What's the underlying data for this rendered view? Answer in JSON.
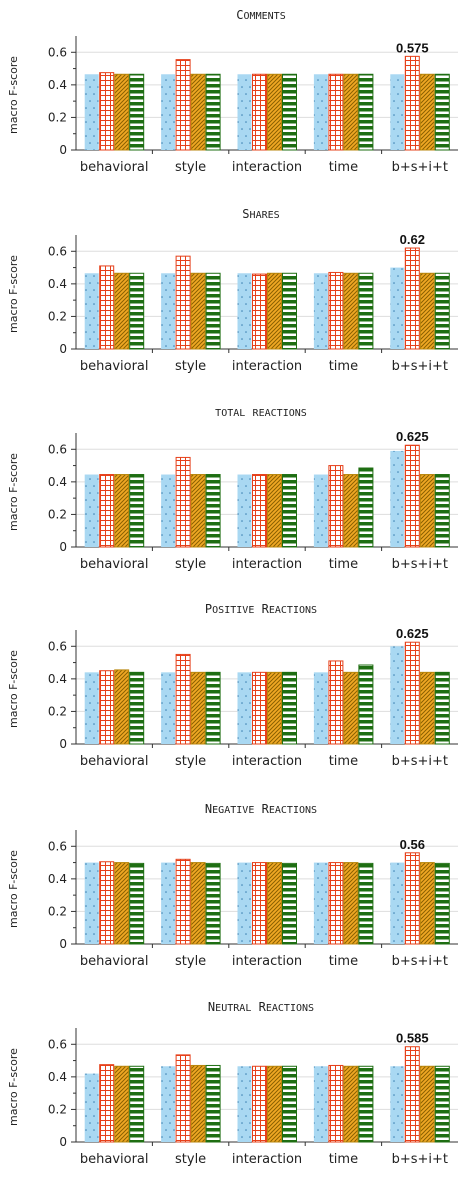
{
  "chart_data": [
    {
      "type": "bar",
      "title": "Comments",
      "categories": [
        "behavioral",
        "style",
        "interaction",
        "time",
        "b+s+i+t"
      ],
      "series": [
        {
          "values": [
            0.465,
            0.465,
            0.465,
            0.465,
            0.465
          ]
        },
        {
          "values": [
            0.475,
            0.555,
            0.465,
            0.465,
            0.575
          ]
        },
        {
          "values": [
            0.465,
            0.465,
            0.465,
            0.465,
            0.465
          ]
        },
        {
          "values": [
            0.465,
            0.465,
            0.465,
            0.465,
            0.465
          ]
        }
      ],
      "ylabel": "macro F-score",
      "yticks": [
        "0",
        "0.2",
        "0.4",
        "0.6"
      ],
      "ylim": [
        0,
        0.7
      ],
      "grid": "horizontal",
      "annotation": "0.575"
    },
    {
      "type": "bar",
      "title": "Shares",
      "categories": [
        "behavioral",
        "style",
        "interaction",
        "time",
        "b+s+i+t"
      ],
      "series": [
        {
          "values": [
            0.465,
            0.465,
            0.465,
            0.465,
            0.5
          ]
        },
        {
          "values": [
            0.51,
            0.57,
            0.46,
            0.47,
            0.62
          ]
        },
        {
          "values": [
            0.465,
            0.465,
            0.465,
            0.465,
            0.465
          ]
        },
        {
          "values": [
            0.465,
            0.465,
            0.465,
            0.465,
            0.465
          ]
        }
      ],
      "ylabel": "macro F-score",
      "yticks": [
        "0",
        "0.2",
        "0.4",
        "0.6"
      ],
      "ylim": [
        0,
        0.7
      ],
      "grid": "horizontal",
      "annotation": "0.62"
    },
    {
      "type": "bar",
      "title": "total reactions",
      "categories": [
        "behavioral",
        "style",
        "interaction",
        "time",
        "b+s+i+t"
      ],
      "series": [
        {
          "values": [
            0.445,
            0.445,
            0.445,
            0.445,
            0.59
          ]
        },
        {
          "values": [
            0.445,
            0.55,
            0.445,
            0.5,
            0.625
          ]
        },
        {
          "values": [
            0.445,
            0.445,
            0.445,
            0.445,
            0.445
          ]
        },
        {
          "values": [
            0.445,
            0.445,
            0.445,
            0.485,
            0.445
          ]
        }
      ],
      "ylabel": "macro F-score",
      "yticks": [
        "0",
        "0.2",
        "0.4",
        "0.6"
      ],
      "ylim": [
        0,
        0.7
      ],
      "grid": "horizontal",
      "annotation": "0.625"
    },
    {
      "type": "bar",
      "title": "Positive Reactions",
      "categories": [
        "behavioral",
        "style",
        "interaction",
        "time",
        "b+s+i+t"
      ],
      "series": [
        {
          "values": [
            0.44,
            0.44,
            0.44,
            0.44,
            0.6
          ]
        },
        {
          "values": [
            0.45,
            0.55,
            0.44,
            0.51,
            0.625
          ]
        },
        {
          "values": [
            0.455,
            0.44,
            0.44,
            0.44,
            0.44
          ]
        },
        {
          "values": [
            0.44,
            0.44,
            0.44,
            0.485,
            0.44
          ]
        }
      ],
      "ylabel": "macro F-score",
      "yticks": [
        "0",
        "0.2",
        "0.4",
        "0.6"
      ],
      "ylim": [
        0,
        0.7
      ],
      "grid": "horizontal",
      "annotation": "0.625"
    },
    {
      "type": "bar",
      "title": "Negative Reactions",
      "categories": [
        "behavioral",
        "style",
        "interaction",
        "time",
        "b+s+i+t"
      ],
      "series": [
        {
          "values": [
            0.5,
            0.5,
            0.5,
            0.5,
            0.5
          ]
        },
        {
          "values": [
            0.505,
            0.52,
            0.5,
            0.5,
            0.56
          ]
        },
        {
          "values": [
            0.5,
            0.5,
            0.5,
            0.5,
            0.5
          ]
        },
        {
          "values": [
            0.495,
            0.495,
            0.495,
            0.495,
            0.495
          ]
        }
      ],
      "ylabel": "macro F-score",
      "yticks": [
        "0",
        "0.2",
        "0.4",
        "0.6"
      ],
      "ylim": [
        0,
        0.7
      ],
      "grid": "horizontal",
      "annotation": "0.56"
    },
    {
      "type": "bar",
      "title": "Neutral Reactions",
      "categories": [
        "behavioral",
        "style",
        "interaction",
        "time",
        "b+s+i+t"
      ],
      "series": [
        {
          "values": [
            0.42,
            0.465,
            0.465,
            0.465,
            0.465
          ]
        },
        {
          "values": [
            0.475,
            0.535,
            0.465,
            0.47,
            0.585
          ]
        },
        {
          "values": [
            0.465,
            0.47,
            0.465,
            0.465,
            0.465
          ]
        },
        {
          "values": [
            0.465,
            0.47,
            0.465,
            0.465,
            0.465
          ]
        }
      ],
      "ylabel": "macro F-score",
      "yticks": [
        "0",
        "0.2",
        "0.4",
        "0.6"
      ],
      "ylim": [
        0,
        0.7
      ],
      "grid": "horizontal",
      "annotation": "0.585"
    }
  ],
  "colors": {
    "series1": "#a9d8f2",
    "series1_dot": "#3a7fb0",
    "series2": "#e6401a",
    "series3": "#b8860b",
    "series3_fill": "#f0a824",
    "series4": "#1e6e12",
    "grid": "#dddddd",
    "axis": "#333333"
  }
}
